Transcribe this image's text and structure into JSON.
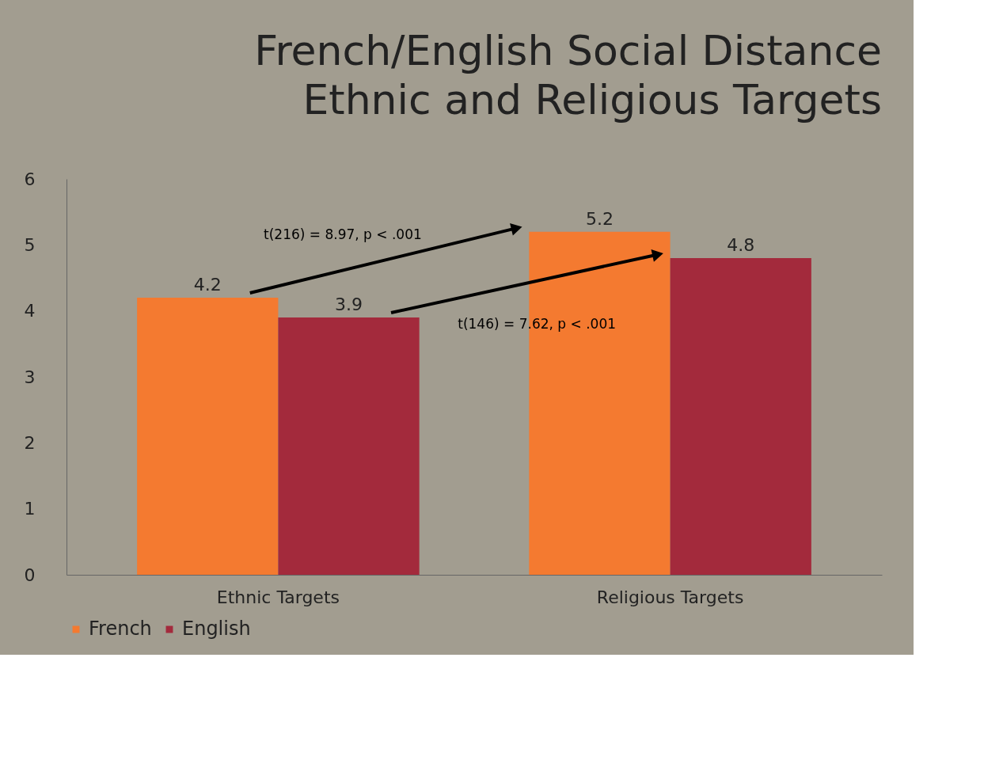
{
  "chart_data": {
    "type": "bar",
    "title": [
      "French/English Social Distance",
      "Ethnic and Religious Targets"
    ],
    "categories": [
      "Ethnic Targets",
      "Religious Targets"
    ],
    "series": [
      {
        "name": "French",
        "color": "#f47a30",
        "values": [
          4.2,
          5.2
        ]
      },
      {
        "name": "English",
        "color": "#a32a3c",
        "values": [
          3.9,
          4.8
        ]
      }
    ],
    "ylim": [
      0,
      6
    ],
    "yticks": [
      0,
      1,
      2,
      3,
      4,
      5,
      6
    ],
    "grid": false,
    "legend": "bottom",
    "data_labels": true,
    "annotations": [
      "t(216) = 8.97, p < .001",
      "t(146) = 7.62, p < .001"
    ]
  }
}
